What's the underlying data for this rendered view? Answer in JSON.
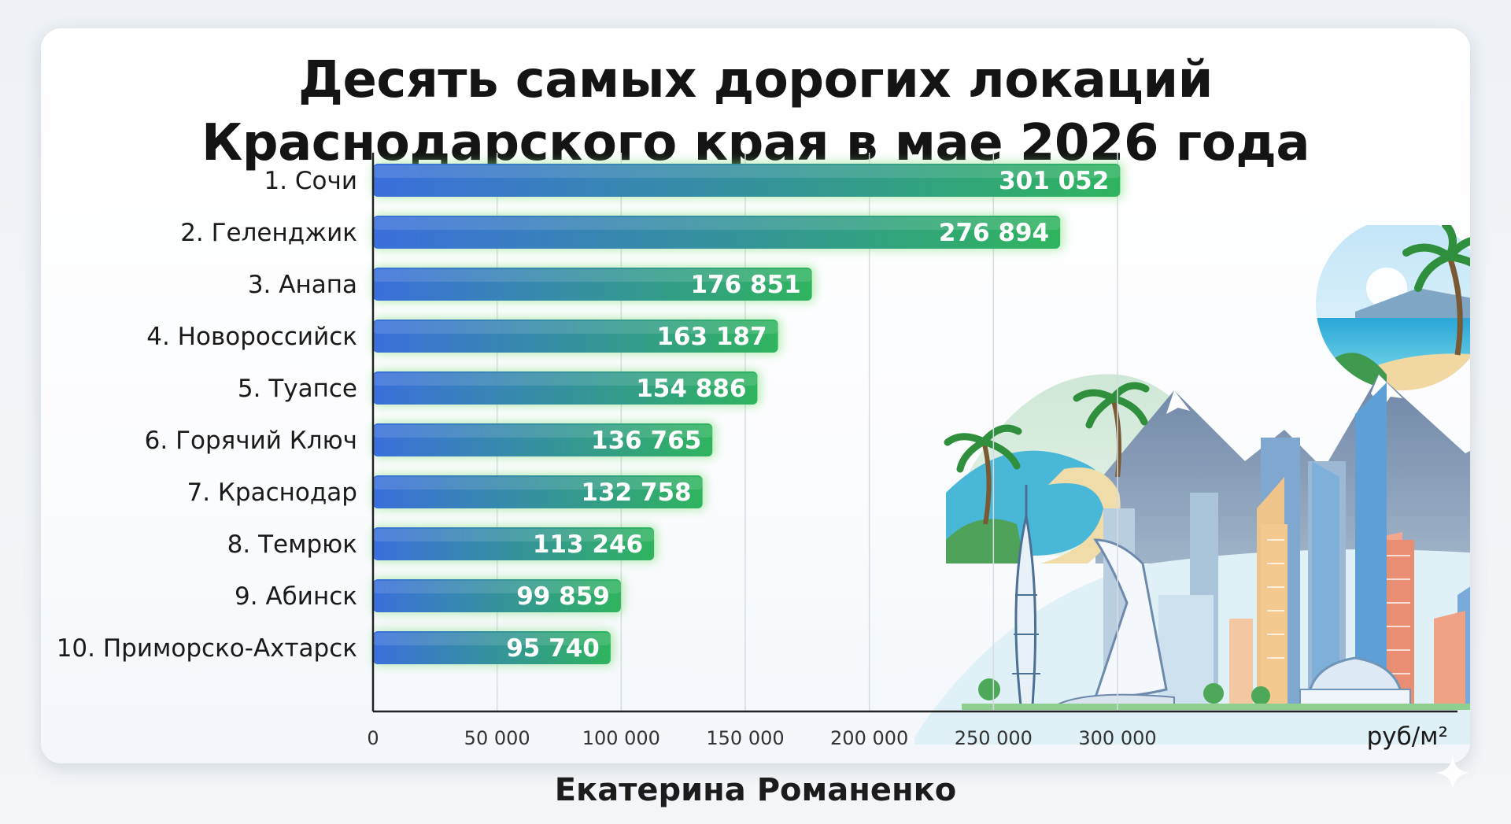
{
  "chart_data": {
    "type": "bar",
    "orientation": "horizontal",
    "title_lines": [
      "Десять самых дорогих локаций",
      "Краснодарского края в мае 2026 года"
    ],
    "categories": [
      "1. Сочи",
      "2. Геленджик",
      "3. Анапа",
      "4. Новороссийск",
      "5. Туапсе",
      "6. Горячий Ключ",
      "7. Краснодар",
      "8. Темрюк",
      "9. Абинск",
      "10. Приморско-Ахтарск"
    ],
    "values": [
      301052,
      276894,
      176851,
      163187,
      154886,
      136765,
      132758,
      113246,
      99859,
      95740
    ],
    "value_labels": [
      "301 052",
      "276 894",
      "176 851",
      "163 187",
      "154 886",
      "136 765",
      "132 758",
      "113 246",
      "99 859",
      "95 740"
    ],
    "xlim": [
      0,
      300000
    ],
    "x_ticks": [
      0,
      50000,
      100000,
      150000,
      200000,
      250000,
      300000
    ],
    "x_tick_labels": [
      "0",
      "50 000",
      "100 000",
      "150 000",
      "200 000",
      "250 000",
      "300 000"
    ],
    "unit_label": "руб/м²",
    "grid": "vertical",
    "colors": {
      "bar_start": "#3b6fdc",
      "bar_end": "#2fb45e",
      "bar_glow": "#7fe07a",
      "value_text": "#ffffff",
      "grid": "#d6dbe2",
      "axis": "#222222"
    }
  },
  "author": "Екатерина Романенко",
  "illustration_icons": [
    "palm-tree-icon",
    "sea-beach-icon",
    "mountain-icon",
    "city-skyline-icon",
    "olympic-flame-tower-icon",
    "sail-tower-icon"
  ]
}
